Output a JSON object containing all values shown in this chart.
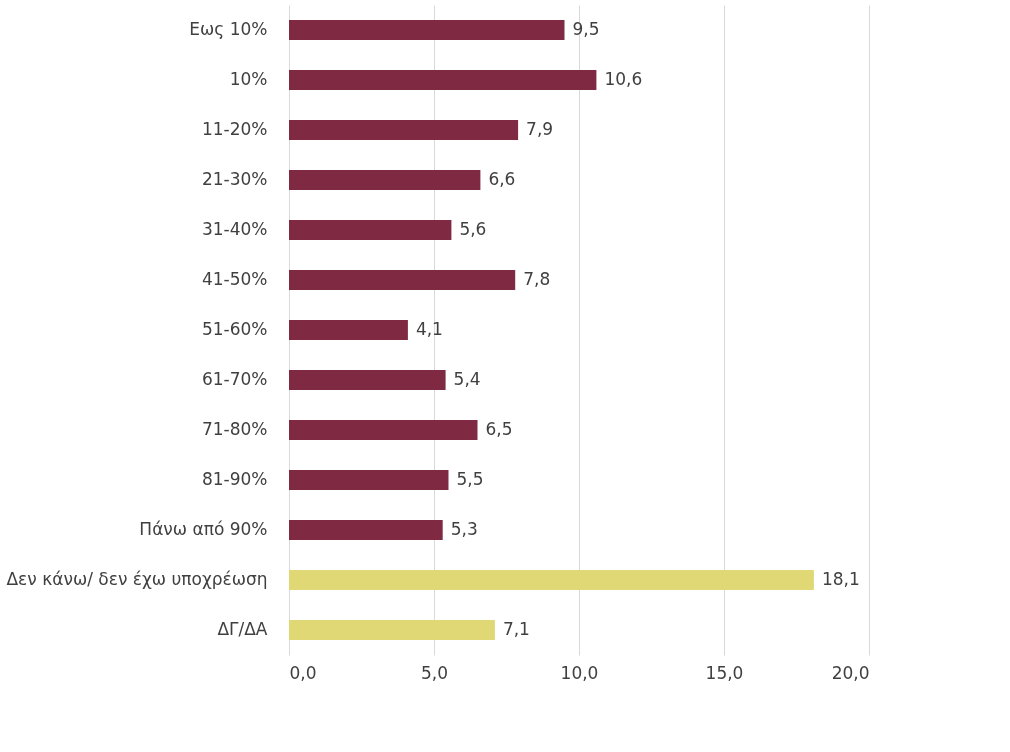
{
  "chart_data": {
    "type": "bar",
    "orientation": "horizontal",
    "categories": [
      "Εως 10%",
      "10%",
      "11-20%",
      "21-30%",
      "31-40%",
      "41-50%",
      "51-60%",
      "61-70%",
      "71-80%",
      "81-90%",
      "Πάνω από 90%",
      "Δεν κάνω/ δεν έχω υποχρέωση",
      "ΔΓ/ΔΑ"
    ],
    "values": [
      9.5,
      10.6,
      7.9,
      6.6,
      5.6,
      7.8,
      4.1,
      5.4,
      6.5,
      5.5,
      5.3,
      18.1,
      7.1
    ],
    "value_labels": [
      "9,5",
      "10,6",
      "7,9",
      "6,6",
      "5,6",
      "7,8",
      "4,1",
      "5,4",
      "6,5",
      "5,5",
      "5,3",
      "18,1",
      "7,1"
    ],
    "colors": [
      "#7f2a42",
      "#7f2a42",
      "#7f2a42",
      "#7f2a42",
      "#7f2a42",
      "#7f2a42",
      "#7f2a42",
      "#7f2a42",
      "#7f2a42",
      "#7f2a42",
      "#7f2a42",
      "#e0d875",
      "#e0d875"
    ],
    "xlim": [
      0,
      20
    ],
    "xticks": [
      {
        "value": 0,
        "label": "0,0"
      },
      {
        "value": 5,
        "label": "5,0"
      },
      {
        "value": 10,
        "label": "10,0"
      },
      {
        "value": 15,
        "label": "15,0"
      },
      {
        "value": 20,
        "label": "20,0"
      }
    ],
    "grid": "x"
  }
}
